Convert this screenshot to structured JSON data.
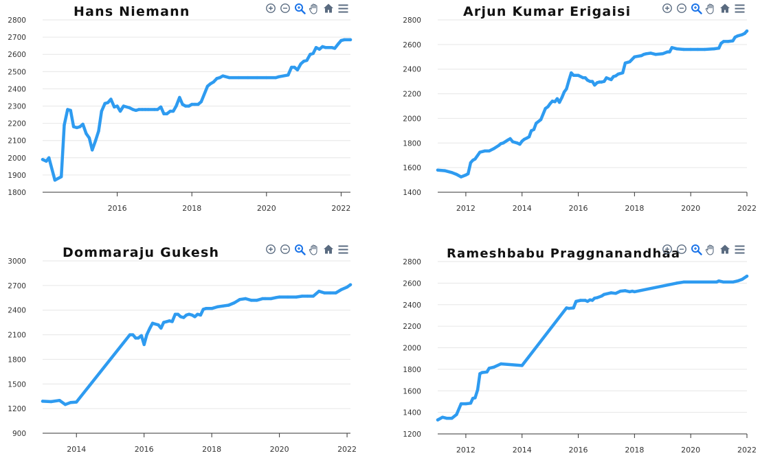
{
  "colors": {
    "line": "#2E9BF0",
    "grid": "#e6e6e6",
    "axis": "#333333",
    "icon": "#5a6b80",
    "icon_active": "#1a73e8"
  },
  "toolbar": {
    "icons": [
      "zoom-in-icon",
      "zoom-out-icon",
      "selection-zoom-icon",
      "pan-icon",
      "reset-zoom-icon",
      "menu-icon"
    ]
  },
  "chart_data": [
    {
      "type": "line",
      "title": "Hans Niemann",
      "xlabel": "",
      "ylabel": "",
      "xlim": [
        2014.0,
        2022.25
      ],
      "ylim": [
        1800,
        2800
      ],
      "yticks": [
        1800,
        1900,
        2000,
        2100,
        2200,
        2300,
        2400,
        2500,
        2600,
        2700,
        2800
      ],
      "xticks": [
        2016,
        2018,
        2020,
        2022
      ],
      "grid": "horizontal",
      "series": [
        {
          "x": [
            2014.0,
            2014.1,
            2014.17,
            2014.33,
            2014.5,
            2014.58,
            2014.67,
            2014.75,
            2014.83,
            2014.92,
            2015.0,
            2015.08,
            2015.17,
            2015.25,
            2015.33,
            2015.42,
            2015.5,
            2015.58,
            2015.67,
            2015.75,
            2015.83,
            2015.92,
            2016.0,
            2016.08,
            2016.17,
            2016.33,
            2016.42,
            2016.5,
            2016.58,
            2016.67,
            2016.75,
            2016.83,
            2017.0,
            2017.08,
            2017.17,
            2017.25,
            2017.33,
            2017.42,
            2017.5,
            2017.58,
            2017.67,
            2017.75,
            2017.83,
            2017.92,
            2018.0,
            2018.08,
            2018.17,
            2018.25,
            2018.42,
            2018.5,
            2018.58,
            2018.67,
            2018.75,
            2018.83,
            2019.0,
            2019.25,
            2019.5,
            2019.75,
            2020.0,
            2020.25,
            2020.33,
            2020.58,
            2020.67,
            2020.75,
            2020.83,
            2020.92,
            2021.0,
            2021.08,
            2021.17,
            2021.25,
            2021.33,
            2021.42,
            2021.5,
            2021.58,
            2021.67,
            2021.75,
            2021.83,
            2021.92,
            2022.0,
            2022.08,
            2022.25
          ],
          "values": [
            1990,
            1980,
            2000,
            1870,
            1890,
            2190,
            2280,
            2275,
            2180,
            2175,
            2180,
            2195,
            2140,
            2115,
            2045,
            2100,
            2155,
            2270,
            2315,
            2320,
            2340,
            2295,
            2300,
            2270,
            2300,
            2290,
            2280,
            2275,
            2280,
            2280,
            2280,
            2280,
            2280,
            2280,
            2295,
            2255,
            2255,
            2270,
            2270,
            2300,
            2350,
            2310,
            2300,
            2300,
            2310,
            2310,
            2310,
            2325,
            2415,
            2430,
            2440,
            2460,
            2465,
            2475,
            2465,
            2465,
            2465,
            2465,
            2465,
            2465,
            2470,
            2480,
            2525,
            2525,
            2510,
            2545,
            2560,
            2565,
            2600,
            2605,
            2640,
            2630,
            2645,
            2640,
            2640,
            2640,
            2635,
            2660,
            2680,
            2685,
            2685
          ]
        }
      ]
    },
    {
      "type": "line",
      "title": "Arjun Kumar Erigaisi",
      "xlabel": "",
      "ylabel": "",
      "xlim": [
        2011.0,
        2022.0
      ],
      "ylim": [
        1400,
        2800
      ],
      "yticks": [
        1400,
        1600,
        1800,
        2000,
        2200,
        2400,
        2600,
        2800
      ],
      "xticks": [
        2012,
        2014,
        2016,
        2018,
        2020,
        2022
      ],
      "grid": "horizontal",
      "series": [
        {
          "x": [
            2011.0,
            2011.25,
            2011.5,
            2011.67,
            2011.83,
            2012.0,
            2012.08,
            2012.17,
            2012.25,
            2012.33,
            2012.5,
            2012.67,
            2012.75,
            2012.83,
            2013.0,
            2013.17,
            2013.25,
            2013.33,
            2013.5,
            2013.58,
            2013.67,
            2013.83,
            2013.92,
            2014.0,
            2014.08,
            2014.17,
            2014.25,
            2014.33,
            2014.42,
            2014.5,
            2014.67,
            2014.83,
            2014.92,
            2015.0,
            2015.08,
            2015.17,
            2015.25,
            2015.33,
            2015.42,
            2015.5,
            2015.58,
            2015.67,
            2015.75,
            2015.83,
            2016.0,
            2016.17,
            2016.25,
            2016.33,
            2016.42,
            2016.5,
            2016.58,
            2016.67,
            2016.75,
            2016.83,
            2016.92,
            2017.0,
            2017.17,
            2017.25,
            2017.33,
            2017.42,
            2017.58,
            2017.67,
            2017.75,
            2017.83,
            2018.0,
            2018.25,
            2018.33,
            2018.42,
            2018.58,
            2018.75,
            2019.0,
            2019.17,
            2019.25,
            2019.33,
            2019.5,
            2019.75,
            2020.0,
            2020.25,
            2020.5,
            2020.83,
            2021.0,
            2021.08,
            2021.17,
            2021.33,
            2021.5,
            2021.58,
            2021.67,
            2021.83,
            2021.92,
            2022.0
          ],
          "values": [
            1580,
            1575,
            1560,
            1545,
            1525,
            1540,
            1550,
            1640,
            1660,
            1670,
            1725,
            1735,
            1735,
            1735,
            1755,
            1780,
            1795,
            1800,
            1825,
            1835,
            1810,
            1800,
            1790,
            1815,
            1830,
            1840,
            1850,
            1900,
            1910,
            1960,
            1990,
            2080,
            2095,
            2120,
            2140,
            2135,
            2160,
            2130,
            2170,
            2215,
            2240,
            2310,
            2370,
            2350,
            2350,
            2330,
            2330,
            2310,
            2300,
            2300,
            2270,
            2290,
            2295,
            2295,
            2300,
            2330,
            2315,
            2340,
            2345,
            2360,
            2370,
            2450,
            2455,
            2460,
            2500,
            2510,
            2520,
            2525,
            2530,
            2520,
            2525,
            2540,
            2540,
            2575,
            2565,
            2560,
            2560,
            2560,
            2560,
            2565,
            2570,
            2610,
            2625,
            2625,
            2630,
            2660,
            2670,
            2680,
            2690,
            2710
          ]
        }
      ]
    },
    {
      "type": "line",
      "title": "Dommaraju Gukesh",
      "xlabel": "",
      "ylabel": "",
      "xlim": [
        2013.0,
        2022.1
      ],
      "ylim": [
        900,
        3000
      ],
      "yticks": [
        900,
        1200,
        1500,
        1800,
        2100,
        2400,
        2700,
        3000
      ],
      "xticks": [
        2014,
        2016,
        2018,
        2020,
        2022
      ],
      "grid": "horizontal",
      "series": [
        {
          "x": [
            2013.0,
            2013.25,
            2013.5,
            2013.67,
            2013.83,
            2014.0,
            2015.58,
            2015.67,
            2015.75,
            2015.83,
            2015.92,
            2016.0,
            2016.08,
            2016.17,
            2016.25,
            2016.33,
            2016.42,
            2016.5,
            2016.58,
            2016.67,
            2016.75,
            2016.83,
            2016.92,
            2017.0,
            2017.08,
            2017.17,
            2017.25,
            2017.33,
            2017.42,
            2017.5,
            2017.58,
            2017.67,
            2017.75,
            2017.83,
            2017.92,
            2018.0,
            2018.17,
            2018.33,
            2018.5,
            2018.67,
            2018.83,
            2019.0,
            2019.17,
            2019.33,
            2019.5,
            2019.58,
            2019.75,
            2019.92,
            2020.0,
            2020.25,
            2020.5,
            2020.67,
            2020.83,
            2021.0,
            2021.17,
            2021.33,
            2021.5,
            2021.67,
            2021.83,
            2022.0,
            2022.1
          ],
          "values": [
            1290,
            1285,
            1300,
            1250,
            1275,
            1280,
            2100,
            2100,
            2060,
            2060,
            2090,
            1980,
            2100,
            2180,
            2240,
            2230,
            2220,
            2180,
            2250,
            2260,
            2270,
            2260,
            2350,
            2350,
            2320,
            2310,
            2340,
            2350,
            2340,
            2320,
            2350,
            2340,
            2410,
            2420,
            2420,
            2420,
            2440,
            2450,
            2460,
            2490,
            2530,
            2540,
            2520,
            2520,
            2540,
            2540,
            2540,
            2555,
            2560,
            2560,
            2560,
            2570,
            2570,
            2570,
            2630,
            2610,
            2610,
            2610,
            2650,
            2680,
            2710
          ]
        }
      ]
    },
    {
      "type": "line",
      "title": "Rameshbabu Praggnanandhaa",
      "xlabel": "",
      "ylabel": "",
      "xlim": [
        2011.0,
        2022.0
      ],
      "ylim": [
        1200,
        2800
      ],
      "yticks": [
        1200,
        1400,
        1600,
        1800,
        2000,
        2200,
        2400,
        2600,
        2800
      ],
      "xticks": [
        2012,
        2014,
        2016,
        2018,
        2020,
        2022
      ],
      "grid": "horizontal",
      "series": [
        {
          "x": [
            2011.0,
            2011.17,
            2011.33,
            2011.5,
            2011.67,
            2011.83,
            2012.0,
            2012.17,
            2012.25,
            2012.33,
            2012.42,
            2012.5,
            2012.58,
            2012.75,
            2012.83,
            2013.0,
            2013.25,
            2014.0,
            2015.58,
            2015.67,
            2015.83,
            2015.92,
            2016.08,
            2016.25,
            2016.33,
            2016.42,
            2016.5,
            2016.58,
            2016.67,
            2016.83,
            2016.92,
            2017.0,
            2017.17,
            2017.33,
            2017.5,
            2017.67,
            2017.83,
            2017.92,
            2018.0,
            2019.5,
            2019.75,
            2020.0,
            2020.5,
            2020.92,
            2021.0,
            2021.17,
            2021.5,
            2021.67,
            2021.83,
            2022.0
          ],
          "values": [
            1330,
            1355,
            1345,
            1345,
            1380,
            1480,
            1480,
            1485,
            1530,
            1535,
            1610,
            1760,
            1770,
            1775,
            1810,
            1820,
            1850,
            1835,
            2370,
            2365,
            2370,
            2430,
            2440,
            2440,
            2430,
            2445,
            2440,
            2460,
            2465,
            2480,
            2495,
            2500,
            2510,
            2505,
            2525,
            2530,
            2520,
            2525,
            2520,
            2600,
            2610,
            2610,
            2610,
            2610,
            2620,
            2610,
            2610,
            2620,
            2635,
            2665
          ]
        }
      ]
    }
  ]
}
